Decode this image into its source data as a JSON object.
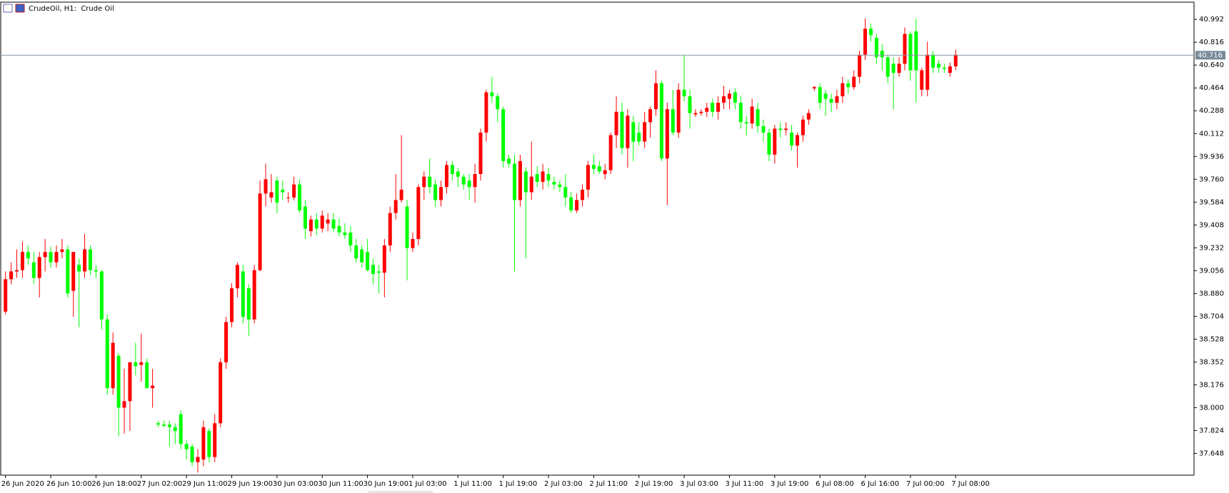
{
  "chart_data": {
    "type": "candlestick",
    "title": "CrudeOil, H1:  Crude Oil",
    "up_color": "#ff0000",
    "down_color": "#00ff00",
    "grid": false,
    "last_price": 40.716,
    "ylim": [
      37.48,
      41.125
    ],
    "yticks": [
      37.648,
      37.824,
      {
        "value": 38.0,
        "label": "38.000"
      },
      38.176,
      38.352,
      38.528,
      38.704,
      {
        "value": 38.88,
        "label": "38.880"
      },
      39.056,
      39.232,
      39.408,
      39.584,
      {
        "value": 39.76,
        "label": "39.760"
      },
      39.936,
      40.112,
      40.288,
      40.464,
      {
        "value": 40.64,
        "label": "40.640"
      },
      40.816,
      40.992
    ],
    "categories": [
      "26 Jun 2020",
      null,
      null,
      null,
      null,
      null,
      null,
      null,
      "26 Jun 10:00",
      null,
      null,
      null,
      null,
      null,
      null,
      null,
      "26 Jun 18:00",
      null,
      null,
      null,
      null,
      null,
      null,
      null,
      "27 Jun 02:00",
      null,
      null,
      null,
      null,
      null,
      null,
      null,
      "29 Jun 11:00",
      null,
      null,
      null,
      null,
      null,
      null,
      null,
      "29 Jun 19:00",
      null,
      null,
      null,
      null,
      null,
      null,
      null,
      "30 Jun 03:00",
      null,
      null,
      null,
      null,
      null,
      null,
      null,
      "30 Jun 11:00",
      null,
      null,
      null,
      null,
      null,
      null,
      null,
      "30 Jun 19:00",
      null,
      null,
      null,
      null,
      null,
      null,
      null,
      "1 Jul 03:00",
      null,
      null,
      null,
      null,
      null,
      null,
      null,
      "1 Jul 11:00",
      null,
      null,
      null,
      null,
      null,
      null,
      null,
      "1 Jul 19:00",
      null,
      null,
      null,
      null,
      null,
      null,
      null,
      "2 Jul 03:00",
      null,
      null,
      null,
      null,
      null,
      null,
      null,
      "2 Jul 11:00",
      null,
      null,
      null,
      null,
      null,
      null,
      null,
      "2 Jul 19:00",
      null,
      null,
      null,
      null,
      null,
      null,
      null,
      "3 Jul 03:00",
      null,
      null,
      null,
      null,
      null,
      null,
      null,
      "3 Jul 11:00",
      null,
      null,
      null,
      null,
      null,
      null,
      null,
      "3 Jul 19:00",
      null,
      null,
      null,
      null,
      null,
      null,
      null,
      "6 Jul 08:00",
      null,
      null,
      null,
      null,
      null,
      null,
      null,
      "6 Jul 16:00",
      null,
      null,
      null,
      null,
      null,
      null,
      null,
      "7 Jul 00:00",
      null,
      null,
      null,
      null,
      null,
      null,
      null,
      "7 Jul 08:00"
    ],
    "ohlc": [
      [
        38.74,
        39.05,
        38.72,
        38.99
      ],
      [
        38.99,
        39.12,
        38.95,
        39.05
      ],
      [
        39.05,
        39.22,
        39.0,
        39.06
      ],
      [
        39.06,
        39.28,
        39.0,
        39.2
      ],
      [
        39.2,
        39.25,
        39.1,
        39.15
      ],
      [
        39.12,
        39.2,
        38.95,
        39.0
      ],
      [
        39.0,
        39.2,
        38.85,
        39.16
      ],
      [
        39.16,
        39.3,
        39.05,
        39.2
      ],
      [
        39.2,
        39.24,
        39.08,
        39.12
      ],
      [
        39.12,
        39.25,
        39.08,
        39.2
      ],
      [
        39.2,
        39.3,
        39.15,
        39.22
      ],
      [
        39.22,
        39.25,
        38.85,
        38.88
      ],
      [
        38.9,
        39.2,
        38.7,
        39.2
      ],
      [
        39.1,
        39.15,
        38.62,
        39.05
      ],
      [
        39.05,
        39.34,
        39.0,
        39.22
      ],
      [
        39.22,
        39.25,
        39.02,
        39.06
      ],
      [
        39.06,
        39.1,
        39.0,
        39.05
      ],
      [
        39.05,
        39.06,
        38.6,
        38.68
      ],
      [
        38.68,
        38.72,
        38.1,
        38.15
      ],
      [
        38.15,
        38.58,
        38.1,
        38.5
      ],
      [
        38.4,
        38.42,
        37.78,
        38.0
      ],
      [
        38.0,
        38.3,
        37.8,
        38.05
      ],
      [
        38.05,
        38.35,
        37.82,
        38.35
      ],
      [
        38.35,
        38.5,
        38.25,
        38.32
      ],
      [
        38.33,
        38.57,
        38.2,
        38.35
      ],
      [
        38.35,
        38.38,
        38.15,
        38.15
      ],
      [
        38.15,
        38.3,
        38.0,
        38.17
      ],
      [
        37.88,
        37.9,
        37.85,
        37.87
      ],
      [
        37.87,
        37.9,
        37.85,
        37.86
      ],
      [
        37.87,
        37.9,
        37.7,
        37.85
      ],
      [
        37.85,
        37.88,
        37.72,
        37.82
      ],
      [
        37.95,
        37.98,
        37.68,
        37.72
      ],
      [
        37.72,
        37.75,
        37.6,
        37.68
      ],
      [
        37.7,
        37.72,
        37.55,
        37.58
      ],
      [
        37.58,
        37.68,
        37.5,
        37.62
      ],
      [
        37.6,
        37.9,
        37.55,
        37.85
      ],
      [
        37.82,
        37.84,
        37.58,
        37.62
      ],
      [
        37.62,
        37.95,
        37.58,
        37.88
      ],
      [
        37.88,
        38.38,
        37.85,
        38.35
      ],
      [
        38.35,
        38.7,
        38.3,
        38.66
      ],
      [
        38.66,
        38.96,
        38.62,
        38.92
      ],
      [
        38.92,
        39.12,
        38.85,
        39.1
      ],
      [
        39.05,
        39.1,
        38.65,
        38.7
      ],
      [
        38.92,
        38.95,
        38.55,
        38.68
      ],
      [
        38.68,
        39.1,
        38.65,
        39.06
      ],
      [
        39.06,
        39.75,
        39.05,
        39.65
      ],
      [
        39.65,
        39.88,
        39.55,
        39.76
      ],
      [
        39.62,
        39.8,
        39.58,
        39.66
      ],
      [
        39.75,
        39.78,
        39.5,
        39.58
      ],
      [
        39.68,
        39.75,
        39.6,
        39.66
      ],
      [
        39.62,
        39.66,
        39.58,
        39.62
      ],
      [
        39.62,
        39.78,
        39.6,
        39.72
      ],
      [
        39.72,
        39.76,
        39.5,
        39.52
      ],
      [
        39.55,
        39.6,
        39.3,
        39.38
      ],
      [
        39.36,
        39.48,
        39.32,
        39.45
      ],
      [
        39.45,
        39.5,
        39.33,
        39.38
      ],
      [
        39.38,
        39.52,
        39.35,
        39.48
      ],
      [
        39.42,
        39.5,
        39.36,
        39.45
      ],
      [
        39.45,
        39.5,
        39.35,
        39.38
      ],
      [
        39.4,
        39.46,
        39.32,
        39.35
      ],
      [
        39.35,
        39.42,
        39.3,
        39.33
      ],
      [
        39.35,
        39.4,
        39.2,
        39.25
      ],
      [
        39.25,
        39.3,
        39.12,
        39.15
      ],
      [
        39.22,
        39.25,
        39.08,
        39.12
      ],
      [
        39.2,
        39.3,
        39.05,
        39.06
      ],
      [
        39.1,
        39.15,
        38.95,
        39.03
      ],
      [
        39.05,
        39.1,
        38.88,
        39.04
      ],
      [
        39.04,
        39.3,
        38.85,
        39.25
      ],
      [
        39.25,
        39.55,
        39.2,
        39.5
      ],
      [
        39.5,
        39.8,
        39.45,
        39.6
      ],
      [
        39.6,
        40.1,
        39.58,
        39.68
      ],
      [
        39.55,
        39.6,
        38.98,
        39.23
      ],
      [
        39.23,
        39.35,
        39.2,
        39.3
      ],
      [
        39.3,
        39.72,
        39.25,
        39.7
      ],
      [
        39.7,
        39.82,
        39.6,
        39.78
      ],
      [
        39.78,
        39.92,
        39.65,
        39.7
      ],
      [
        39.72,
        39.76,
        39.55,
        39.6
      ],
      [
        39.6,
        39.75,
        39.55,
        39.7
      ],
      [
        39.7,
        39.9,
        39.65,
        39.87
      ],
      [
        39.87,
        39.9,
        39.75,
        39.8
      ],
      [
        39.82,
        39.85,
        39.7,
        39.78
      ],
      [
        39.78,
        39.8,
        39.68,
        39.72
      ],
      [
        39.75,
        39.8,
        39.6,
        39.7
      ],
      [
        39.7,
        39.88,
        39.58,
        39.8
      ],
      [
        39.8,
        40.15,
        39.75,
        40.12
      ],
      [
        40.12,
        40.45,
        40.05,
        40.43
      ],
      [
        40.43,
        40.55,
        40.35,
        40.4
      ],
      [
        40.4,
        40.42,
        40.2,
        40.3
      ],
      [
        40.3,
        40.32,
        39.85,
        39.9
      ],
      [
        39.92,
        39.95,
        39.85,
        39.88
      ],
      [
        39.88,
        39.95,
        39.05,
        39.6
      ],
      [
        39.6,
        39.95,
        39.55,
        39.9
      ],
      [
        39.82,
        39.85,
        39.15,
        39.66
      ],
      [
        39.66,
        40.05,
        39.6,
        39.78
      ],
      [
        39.8,
        39.86,
        39.7,
        39.74
      ],
      [
        39.74,
        39.88,
        39.68,
        39.82
      ],
      [
        39.8,
        39.85,
        39.7,
        39.75
      ],
      [
        39.74,
        39.78,
        39.68,
        39.72
      ],
      [
        39.72,
        39.75,
        39.66,
        39.7
      ],
      [
        39.7,
        39.8,
        39.55,
        39.62
      ],
      [
        39.62,
        39.66,
        39.5,
        39.52
      ],
      [
        39.52,
        39.65,
        39.5,
        39.6
      ],
      [
        39.6,
        39.72,
        39.55,
        39.68
      ],
      [
        39.68,
        39.9,
        39.62,
        39.87
      ],
      [
        39.87,
        39.95,
        39.8,
        39.84
      ],
      [
        39.86,
        39.9,
        39.8,
        39.82
      ],
      [
        39.8,
        39.88,
        39.76,
        39.83
      ],
      [
        39.83,
        40.12,
        39.8,
        40.1
      ],
      [
        40.1,
        40.4,
        40.0,
        40.28
      ],
      [
        40.28,
        40.35,
        39.95,
        40.0
      ],
      [
        40.0,
        40.3,
        39.85,
        40.25
      ],
      [
        40.2,
        40.25,
        39.9,
        40.05
      ],
      [
        40.12,
        40.2,
        40.02,
        40.05
      ],
      [
        40.05,
        40.28,
        40.0,
        40.2
      ],
      [
        40.2,
        40.32,
        40.08,
        40.3
      ],
      [
        40.3,
        40.6,
        40.25,
        40.5
      ],
      [
        40.5,
        40.52,
        39.9,
        39.92
      ],
      [
        39.92,
        40.35,
        39.56,
        40.3
      ],
      [
        40.3,
        40.45,
        40.1,
        40.12
      ],
      [
        40.12,
        40.5,
        40.08,
        40.45
      ],
      [
        40.45,
        40.72,
        40.36,
        40.4
      ],
      [
        40.4,
        40.45,
        40.15,
        40.27
      ],
      [
        40.26,
        40.3,
        40.24,
        40.27
      ],
      [
        40.27,
        40.3,
        40.25,
        40.28
      ],
      [
        40.28,
        40.35,
        40.24,
        40.31
      ],
      [
        40.35,
        40.38,
        40.24,
        40.28
      ],
      [
        40.28,
        40.4,
        40.22,
        40.35
      ],
      [
        40.35,
        40.48,
        40.3,
        40.4
      ],
      [
        40.38,
        40.45,
        40.3,
        40.42
      ],
      [
        40.43,
        40.46,
        40.3,
        40.35
      ],
      [
        40.35,
        40.4,
        40.15,
        40.2
      ],
      [
        40.2,
        40.25,
        40.1,
        40.19
      ],
      [
        40.19,
        40.38,
        40.15,
        40.32
      ],
      [
        40.3,
        40.35,
        40.12,
        40.17
      ],
      [
        40.17,
        40.22,
        40.05,
        40.12
      ],
      [
        40.12,
        40.15,
        39.9,
        39.95
      ],
      [
        39.95,
        40.18,
        39.88,
        40.15
      ],
      [
        40.15,
        40.2,
        40.08,
        40.14
      ],
      [
        40.14,
        40.2,
        40.1,
        40.15
      ],
      [
        40.12,
        40.18,
        39.98,
        40.02
      ],
      [
        40.02,
        40.12,
        39.85,
        40.1
      ],
      [
        40.1,
        40.25,
        40.05,
        40.22
      ],
      [
        40.22,
        40.3,
        40.18,
        40.27
      ],
      [
        40.46,
        40.48,
        40.44,
        40.47
      ],
      [
        40.47,
        40.5,
        40.3,
        40.35
      ],
      [
        40.42,
        40.45,
        40.25,
        40.38
      ],
      [
        40.38,
        40.42,
        40.28,
        40.35
      ],
      [
        40.35,
        40.45,
        40.3,
        40.4
      ],
      [
        40.4,
        40.55,
        40.35,
        40.5
      ],
      [
        40.5,
        40.53,
        40.42,
        40.47
      ],
      [
        40.47,
        40.6,
        40.45,
        40.55
      ],
      [
        40.55,
        40.75,
        40.5,
        40.72
      ],
      [
        40.72,
        41.0,
        40.68,
        40.92
      ],
      [
        40.92,
        40.96,
        40.82,
        40.87
      ],
      [
        40.85,
        40.88,
        40.65,
        40.7
      ],
      [
        40.75,
        40.8,
        40.6,
        40.7
      ],
      [
        40.7,
        40.72,
        40.5,
        40.55
      ],
      [
        40.65,
        40.7,
        40.3,
        40.58
      ],
      [
        40.58,
        40.7,
        40.55,
        40.65
      ],
      [
        40.65,
        40.93,
        40.6,
        40.88
      ],
      [
        40.88,
        40.9,
        40.52,
        40.6
      ],
      [
        40.9,
        41.0,
        40.35,
        40.6
      ],
      [
        40.45,
        40.62,
        40.4,
        40.6
      ],
      [
        40.45,
        40.82,
        40.4,
        40.72
      ],
      [
        40.72,
        40.75,
        40.58,
        40.62
      ],
      [
        40.65,
        40.68,
        40.58,
        40.62
      ],
      [
        40.62,
        40.65,
        40.58,
        40.61
      ],
      [
        40.58,
        40.66,
        40.55,
        40.63
      ],
      [
        40.63,
        40.76,
        40.6,
        40.72
      ]
    ]
  }
}
